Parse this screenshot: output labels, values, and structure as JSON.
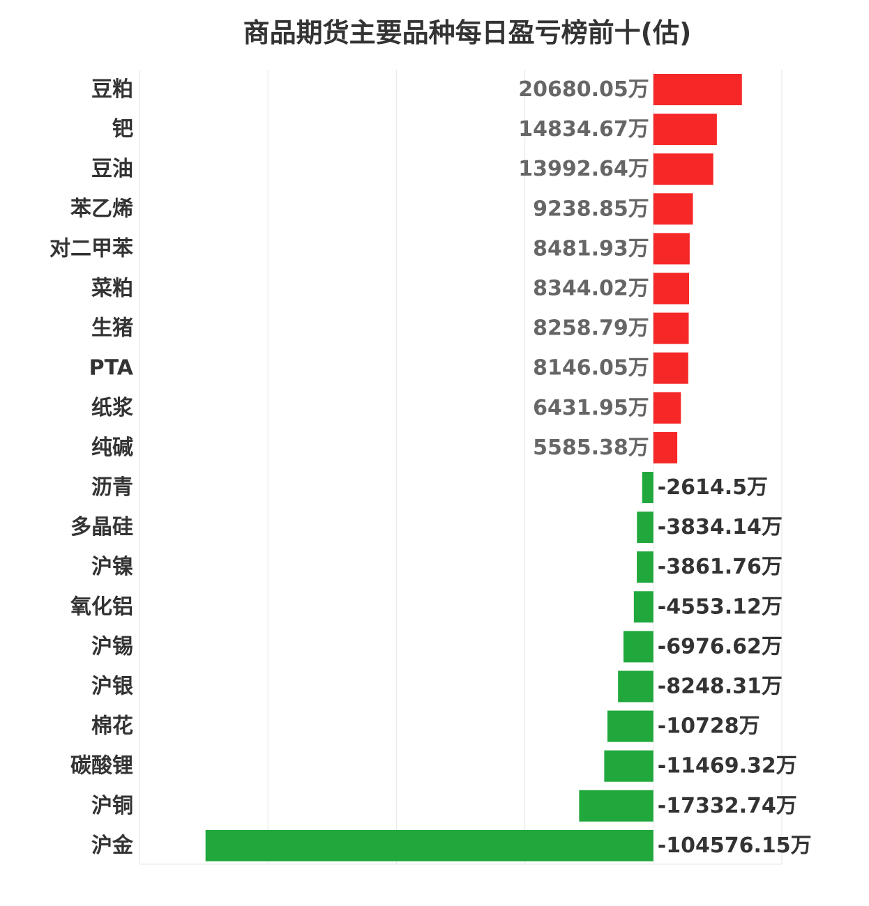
{
  "chart_data": {
    "type": "bar",
    "orientation": "horizontal",
    "title": "商品期货主要品种每日盈亏榜前十(估)",
    "unit": "万",
    "categories": [
      "豆粕",
      "钯",
      "豆油",
      "苯乙烯",
      "对二甲苯",
      "菜粕",
      "生猪",
      "PTA",
      "纸浆",
      "纯碱",
      "沥青",
      "多晶硅",
      "沪镍",
      "氧化铝",
      "沪锡",
      "沪银",
      "棉花",
      "碳酸锂",
      "沪铜",
      "沪金"
    ],
    "values": [
      20680.05,
      14834.67,
      13992.64,
      9238.85,
      8481.93,
      8344.02,
      8258.79,
      8146.05,
      6431.95,
      5585.38,
      -2614.5,
      -3834.14,
      -3861.76,
      -4553.12,
      -6976.62,
      -8248.31,
      -10728,
      -11469.32,
      -17332.74,
      -104576.15
    ],
    "value_labels": [
      "20680.05万",
      "14834.67万",
      "13992.64万",
      "9238.85万",
      "8481.93万",
      "8344.02万",
      "8258.79万",
      "8146.05万",
      "6431.95万",
      "5585.38万",
      "-2614.5万",
      "-3834.14万",
      "-3861.76万",
      "-4553.12万",
      "-6976.62万",
      "-8248.31万",
      "-10728万",
      "-11469.32万",
      "-17332.74万",
      "-104576.15万"
    ],
    "xlim": [
      -120000,
      30000
    ],
    "gridlines_x": [
      -120000,
      -90000,
      -60000,
      -30000,
      0,
      30000
    ],
    "grid": true,
    "colors": {
      "positive": "#f62727",
      "negative": "#20a83c",
      "grid": "#e6e6e6",
      "category_label": "#333333",
      "value_label": "#666666"
    }
  }
}
